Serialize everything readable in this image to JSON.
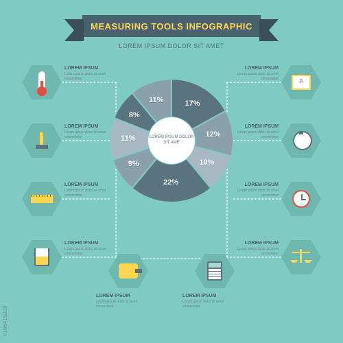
{
  "banner": {
    "title": "MEASURING TOOLS INFOGRAPHIC",
    "bg_color": "#4a6270",
    "title_color": "#ffd54f"
  },
  "subtitle": "LOREM IPSUM DOLOR SIT AMET",
  "background_color": "#7fcbc4",
  "donut": {
    "center_text": "LOREM IPSUM DOLOR SIT AME",
    "slices": [
      {
        "value": 17,
        "label": "17%",
        "color": "#5a7380"
      },
      {
        "value": 12,
        "label": "12%",
        "color": "#8aa0ad"
      },
      {
        "value": 10,
        "label": "10%",
        "color": "#a8b8c2"
      },
      {
        "value": 22,
        "label": "22%",
        "color": "#5a7380"
      },
      {
        "value": 9,
        "label": "9%",
        "color": "#8aa0ad"
      },
      {
        "value": 11,
        "label": "11%",
        "color": "#a8b8c2"
      },
      {
        "value": 8,
        "label": "8%",
        "color": "#5a7380"
      },
      {
        "value": 11,
        "label": "11%",
        "color": "#8aa0ad"
      }
    ],
    "inner_radius": 34,
    "outer_radius": 90
  },
  "hexagons": [
    {
      "icon": "thermometer",
      "title": "LOREM IPSUM",
      "body": "Lorem ipsum dolor sit amet consectetur"
    },
    {
      "icon": "caliper",
      "title": "LOREM IPSUM",
      "body": "Lorem ipsum dolor sit amet consectetur"
    },
    {
      "icon": "ruler",
      "title": "LOREM IPSUM",
      "body": "Lorem ipsum dolor sit amet consectetur"
    },
    {
      "icon": "beaker",
      "title": "LOREM IPSUM",
      "body": "Lorem ipsum dolor sit amet consectetur"
    },
    {
      "icon": "tape",
      "title": "LOREM IPSUM",
      "body": "Lorem ipsum dolor sit amet consectetur"
    },
    {
      "icon": "calculator",
      "title": "LOREM IPSUM",
      "body": "Lorem ipsum dolor sit amet consectetur"
    },
    {
      "icon": "meter",
      "title": "LOREM IPSUM",
      "body": "Lorem ipsum dolor sit amet consectetur"
    },
    {
      "icon": "stopwatch",
      "title": "LOREM IPSUM",
      "body": "Lorem ipsum dolor sit amet consectetur"
    },
    {
      "icon": "clock",
      "title": "LOREM IPSUM",
      "body": "Lorem ipsum dolor sit amet consectetur"
    },
    {
      "icon": "scales",
      "title": "LOREM IPSUM",
      "body": "Lorem ipsum dolor sit amet consectetur"
    }
  ],
  "hexagon_color": "#6fb8b0",
  "watermark": "#166415009"
}
